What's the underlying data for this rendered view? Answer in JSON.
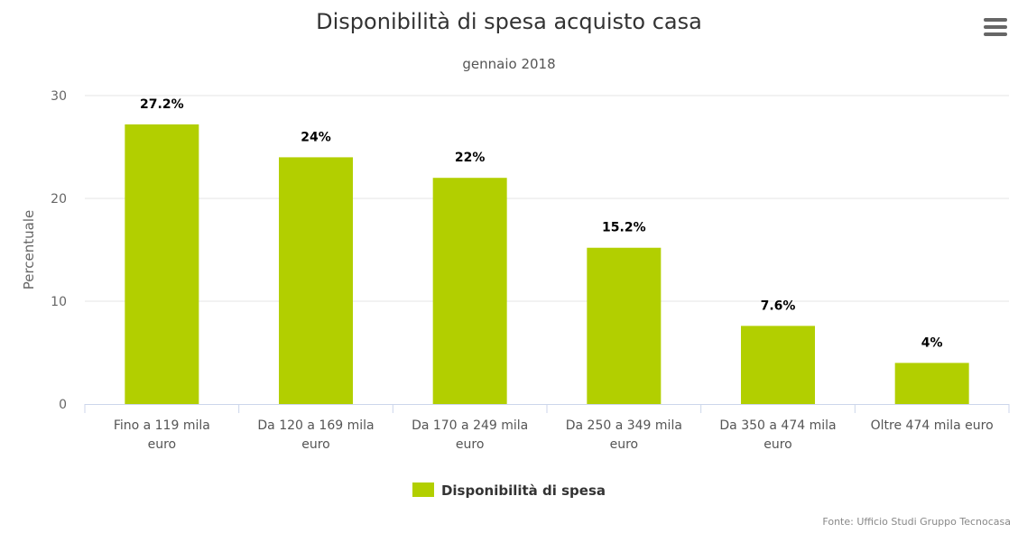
{
  "title": "Disponibilità di spesa acquisto casa",
  "subtitle": "gennaio 2018",
  "menu_icon": "hamburger-menu-icon",
  "credits": "Fonte: Ufficio Studi Gruppo Tecnocasa",
  "chart_data": {
    "type": "bar",
    "title": "Disponibilità di spesa acquisto casa",
    "subtitle": "gennaio 2018",
    "xlabel": "",
    "ylabel": "Percentuale",
    "ylim": [
      0,
      30
    ],
    "yticks": [
      0,
      10,
      20,
      30
    ],
    "grid": true,
    "legend": "bottom",
    "categories": [
      [
        "Fino a 119 mila",
        "euro"
      ],
      [
        "Da 120 a 169 mila",
        "euro"
      ],
      [
        "Da 170 a 249 mila",
        "euro"
      ],
      [
        "Da 250 a 349 mila",
        "euro"
      ],
      [
        "Da 350 a 474 mila",
        "euro"
      ],
      [
        "Oltre 474 mila euro"
      ]
    ],
    "series": [
      {
        "name": "Disponibilità di spesa",
        "color": "#b2cf00",
        "values": [
          27.2,
          24,
          22,
          15.2,
          7.6,
          4
        ],
        "labels": [
          "27.2%",
          "24%",
          "22%",
          "15.2%",
          "7.6%",
          "4%"
        ]
      }
    ]
  }
}
